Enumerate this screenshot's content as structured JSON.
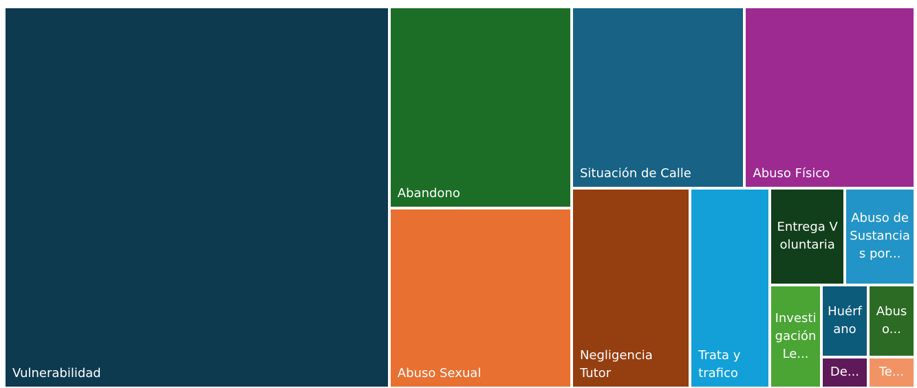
{
  "chart_data": {
    "type": "treemap",
    "categories": [
      "Vulnerabilidad",
      "Abandono",
      "Abuso Sexual",
      "Situación de Calle",
      "Abuso Físico",
      "Negligencia Tutor",
      "Trata y trafico",
      "Entrega Voluntaria",
      "Abuso de Sustancias por...",
      "Investigación Le...",
      "Huérfano",
      "Abuso...",
      "De...",
      "Te..."
    ],
    "values": [
      304,
      76,
      68,
      65,
      64,
      49,
      33,
      15,
      14,
      11,
      7,
      7,
      3,
      3
    ],
    "colors": [
      "#0e3a50",
      "#1c6e26",
      "#e87031",
      "#176285",
      "#9c2a91",
      "#953e10",
      "#13a0d8",
      "#123f1b",
      "#2394c7",
      "#4aa535",
      "#0d5b7b",
      "#2c6b23",
      "#5e1a58",
      "#f19364"
    ]
  }
}
